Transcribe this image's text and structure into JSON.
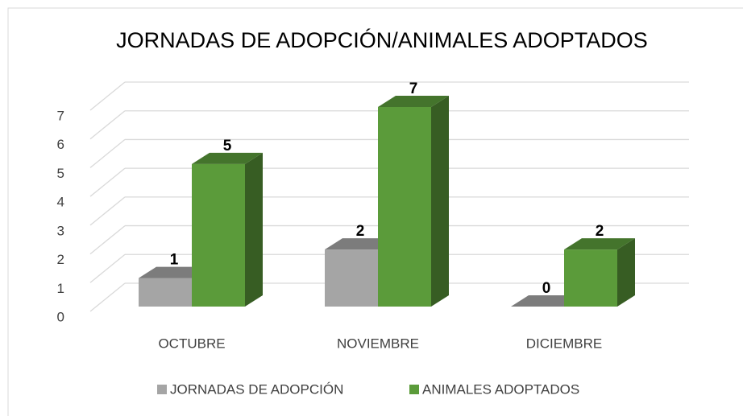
{
  "chart_data": {
    "type": "bar3d",
    "title": "JORNADAS DE ADOPCIÓN/ANIMALES ADOPTADOS",
    "categories": [
      "OCTUBRE",
      "NOVIEMBRE",
      "DICIEMBRE"
    ],
    "series": [
      {
        "name": "JORNADAS DE ADOPCIÓN",
        "color": "#a5a5a5",
        "values": [
          1,
          2,
          0
        ]
      },
      {
        "name": "ANIMALES ADOPTADOS",
        "color": "#5b9b3a",
        "values": [
          5,
          7,
          2
        ]
      }
    ],
    "ylim": [
      0,
      7
    ],
    "yticks": [
      0,
      1,
      2,
      3,
      4,
      5,
      6,
      7
    ],
    "grid": true,
    "legend": "bottom"
  }
}
